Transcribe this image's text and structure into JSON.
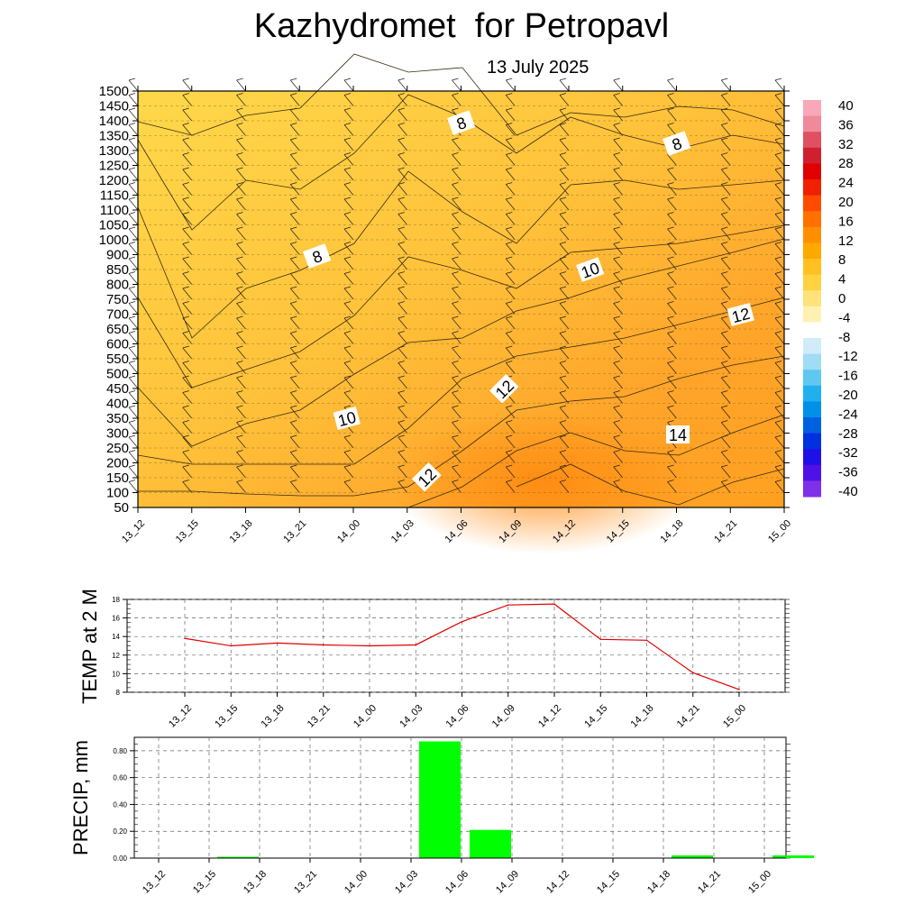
{
  "title": "Kazhydromet  for Petropavl",
  "subtitle": "13 July 2025",
  "colors": {
    "temp_line": "#e00000",
    "precip_bar": "#00ff00",
    "grid": "#555555",
    "contour": "#333333"
  },
  "chart_data": [
    {
      "type": "heatmap",
      "description_of_axes": "time (x) vs height (y)",
      "x_ticks": [
        "13_12",
        "13_15",
        "13_18",
        "13_21",
        "14_00",
        "14_03",
        "14_06",
        "14_09",
        "14_12",
        "14_15",
        "14_18",
        "14_21",
        "15_00"
      ],
      "y_ticks": [
        50,
        100,
        150,
        200,
        250,
        300,
        350,
        400,
        450,
        500,
        550,
        600,
        650,
        700,
        750,
        800,
        850,
        900,
        1000,
        1050,
        1100,
        1150,
        1200,
        1250,
        1300,
        1350,
        1400,
        1450,
        1500
      ],
      "contour_labels": [
        "8",
        "8",
        "8",
        "10",
        "10",
        "12",
        "12",
        "12",
        "14"
      ],
      "colorbar_labels": [
        "40",
        "36",
        "32",
        "28",
        "24",
        "20",
        "16",
        "12",
        "8",
        "4",
        "0",
        "-4",
        "-8",
        "-12",
        "-16",
        "-20",
        "-24",
        "-28",
        "-32",
        "-36",
        "-40"
      ],
      "colorbar_range": [
        -40,
        40
      ]
    },
    {
      "type": "line",
      "ylabel": "TEMP at 2 M",
      "x": [
        "13_12",
        "13_15",
        "13_18",
        "13_21",
        "14_00",
        "14_03",
        "14_06",
        "14_09",
        "14_12",
        "14_15",
        "14_18",
        "14_21",
        "15_00"
      ],
      "values": [
        13.8,
        13.0,
        13.3,
        13.1,
        13.0,
        13.1,
        15.6,
        17.4,
        17.5,
        13.7,
        13.6,
        10.1,
        8.3
      ],
      "ylim": [
        8,
        18
      ],
      "y_ticks": [
        "8",
        "10",
        "12",
        "14",
        "16",
        "18"
      ],
      "grid": true
    },
    {
      "type": "bar",
      "ylabel": "PRECIP, mm",
      "categories": [
        "13_12",
        "13_15",
        "13_18",
        "13_21",
        "14_00",
        "14_03",
        "14_06",
        "14_09",
        "14_12",
        "14_15",
        "14_18",
        "14_21",
        "15_00"
      ],
      "values": [
        0.0,
        0.01,
        0.0,
        0.0,
        0.0,
        0.87,
        0.21,
        0.0,
        0.0,
        0.0,
        0.02,
        0.0,
        0.02
      ],
      "ylim": [
        0,
        0.9
      ],
      "y_ticks": [
        "0.00",
        "0.20",
        "0.40",
        "0.60",
        "0.80"
      ],
      "grid": true
    }
  ]
}
